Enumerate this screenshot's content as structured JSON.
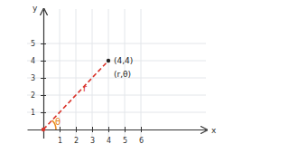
{
  "chart_data": {
    "type": "scatter",
    "x_label": "x",
    "y_label": "y",
    "xlim": [
      -1,
      10
    ],
    "ylim": [
      -0.5,
      7
    ],
    "xticks": [
      1,
      2,
      3,
      4,
      5,
      6
    ],
    "yticks": [
      1,
      2,
      3,
      4,
      5
    ],
    "grid": true,
    "series": [
      {
        "type": "line",
        "color": "#d9342b",
        "line_style": "dashed",
        "x": [
          0,
          4
        ],
        "values": [
          0,
          4
        ]
      },
      {
        "type": "scatter",
        "marker": "circle",
        "colors": [
          "#d9342b",
          "#222222"
        ],
        "x": [
          0,
          4
        ],
        "values": [
          0,
          4
        ]
      }
    ],
    "annotations": [
      "(4,4)",
      "(r,θ)",
      "r",
      "θ"
    ]
  }
}
